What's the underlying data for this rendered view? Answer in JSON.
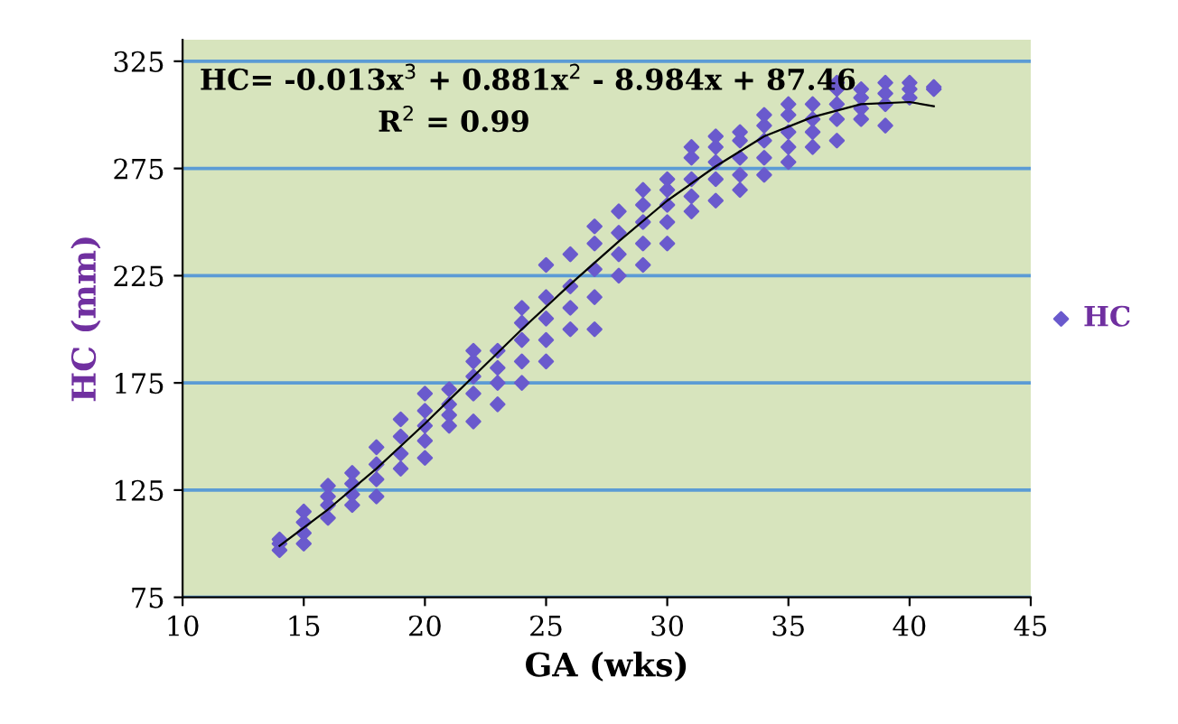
{
  "chart_data": {
    "type": "scatter",
    "xlabel": "GA (wks)",
    "ylabel": "HC (mm)",
    "xlim": [
      10,
      45
    ],
    "xticks": [
      10,
      15,
      20,
      25,
      30,
      35,
      40,
      45
    ],
    "ylim": [
      75,
      335
    ],
    "yticks": [
      75,
      125,
      175,
      225,
      275,
      325
    ],
    "grid": "y",
    "legend": "right",
    "marker": "diamond",
    "annotations": [
      "HC= -0.013x$^{3}$ + 0.881x$^{2}$ - 8.984x + 87.46",
      "R$^{2}$ = 0.99"
    ],
    "series": [
      {
        "name": "HC",
        "color": "#6a5acd",
        "x": [
          14,
          14,
          14,
          15,
          15,
          15,
          15,
          16,
          16,
          16,
          16,
          17,
          17,
          17,
          17,
          18,
          18,
          18,
          18,
          19,
          19,
          19,
          19,
          20,
          20,
          20,
          20,
          20,
          21,
          21,
          21,
          21,
          22,
          22,
          22,
          22,
          22,
          23,
          23,
          23,
          23,
          24,
          24,
          24,
          24,
          24,
          25,
          25,
          25,
          25,
          25,
          26,
          26,
          26,
          26,
          27,
          27,
          27,
          27,
          27,
          28,
          28,
          28,
          28,
          29,
          29,
          29,
          29,
          29,
          30,
          30,
          30,
          30,
          30,
          31,
          31,
          31,
          31,
          31,
          32,
          32,
          32,
          32,
          32,
          33,
          33,
          33,
          33,
          33,
          34,
          34,
          34,
          34,
          34,
          35,
          35,
          35,
          35,
          35,
          36,
          36,
          36,
          36,
          37,
          37,
          37,
          37,
          37,
          38,
          38,
          38,
          38,
          39,
          39,
          39,
          39,
          40,
          40,
          40,
          41,
          41
        ],
        "values": [
          97,
          100,
          102,
          100,
          105,
          110,
          115,
          112,
          118,
          122,
          127,
          118,
          123,
          128,
          133,
          122,
          130,
          137,
          145,
          135,
          142,
          150,
          158,
          140,
          148,
          155,
          162,
          170,
          155,
          160,
          165,
          172,
          157,
          170,
          178,
          185,
          190,
          165,
          175,
          182,
          190,
          175,
          185,
          195,
          203,
          210,
          185,
          195,
          205,
          215,
          230,
          200,
          210,
          220,
          235,
          200,
          215,
          228,
          240,
          248,
          225,
          235,
          245,
          255,
          230,
          240,
          250,
          258,
          265,
          240,
          250,
          258,
          265,
          270,
          255,
          262,
          270,
          280,
          285,
          260,
          270,
          278,
          285,
          290,
          265,
          272,
          280,
          288,
          292,
          272,
          280,
          288,
          295,
          300,
          278,
          285,
          292,
          300,
          305,
          285,
          292,
          298,
          305,
          288,
          298,
          305,
          312,
          315,
          298,
          303,
          308,
          312,
          295,
          305,
          310,
          315,
          308,
          312,
          315,
          312,
          313
        ]
      },
      {
        "type": "line",
        "color": "#000000",
        "marker": "none",
        "x": [
          14,
          16,
          18,
          20,
          22,
          24,
          26,
          28,
          30,
          32,
          34,
          36,
          38,
          40,
          41
        ],
        "values": [
          99,
          116,
          135,
          156,
          178,
          200,
          221,
          241,
          260,
          276,
          290,
          299,
          305,
          306,
          304
        ]
      }
    ]
  }
}
